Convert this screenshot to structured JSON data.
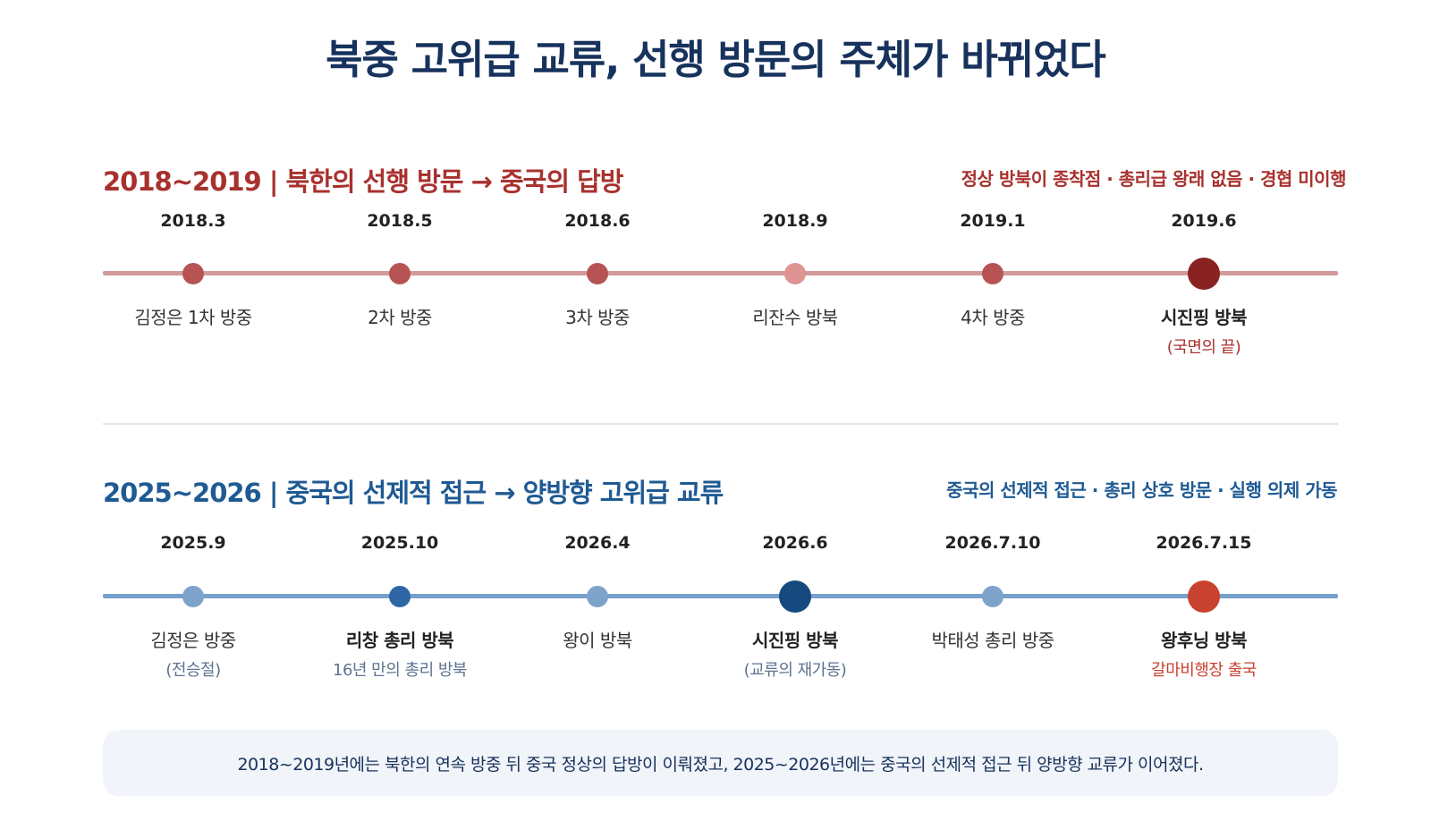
{
  "title": "북중 고위급 교류, 선행 방문의 주체가 바뀌었다",
  "colors": {
    "title": "#17325c",
    "red_accent": "#a8312e",
    "blue_accent": "#1f5a93"
  },
  "sections": [
    {
      "title": "2018~2019 | 북한의 선행 방문 → 중국의 답방",
      "summary": "정상 방북이 종착점 · 총리급 왕래 없음 · 경협 미이행",
      "events": [
        {
          "date": "2018.3",
          "label": "김정은 1차 방중",
          "note": ""
        },
        {
          "date": "2018.5",
          "label": "2차 방중",
          "note": ""
        },
        {
          "date": "2018.6",
          "label": "3차 방중",
          "note": ""
        },
        {
          "date": "2018.9",
          "label": "리잔수 방북",
          "note": ""
        },
        {
          "date": "2019.1",
          "label": "4차 방중",
          "note": ""
        },
        {
          "date": "2019.6",
          "label": "시진핑 방북",
          "note": "(국면의 끝)"
        }
      ]
    },
    {
      "title": "2025~2026 | 중국의 선제적 접근 → 양방향 고위급 교류",
      "summary": "중국의 선제적 접근 · 총리 상호 방문 · 실행 의제 가동",
      "events": [
        {
          "date": "2025.9",
          "label": "김정은 방중",
          "note": "(전승절)"
        },
        {
          "date": "2025.10",
          "label": "리창 총리 방북",
          "note": "16년 만의 총리 방북"
        },
        {
          "date": "2026.4",
          "label": "왕이 방북",
          "note": ""
        },
        {
          "date": "2026.6",
          "label": "시진핑 방북",
          "note": "(교류의 재가동)"
        },
        {
          "date": "2026.7.10",
          "label": "박태성 총리 방중",
          "note": ""
        },
        {
          "date": "2026.7.15",
          "label": "왕후닝 방북",
          "note": "갈마비행장 출국"
        }
      ]
    }
  ],
  "footer": "2018~2019년에는 북한의 연속 방중 뒤 중국 정상의 답방이 이뤄졌고, 2025~2026년에는 중국의 선제적 접근 뒤 양방향 교류가 이어졌다."
}
